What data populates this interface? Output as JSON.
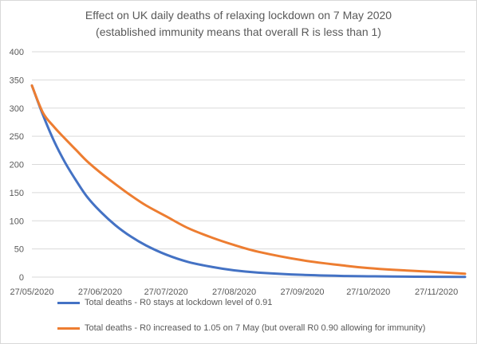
{
  "chart_data": {
    "type": "line",
    "title": "Effect on UK daily deaths of relaxing lockdown on 7 May 2020",
    "subtitle": "(established immunity means that overall R is less than 1)",
    "xlabel": "",
    "ylabel": "",
    "ylim": [
      0,
      400
    ],
    "yticks": [
      "0",
      "50",
      "100",
      "150",
      "200",
      "250",
      "300",
      "350",
      "400"
    ],
    "xticks": [
      "27/05/2020",
      "27/06/2020",
      "27/07/2020",
      "27/08/2020",
      "27/09/2020",
      "27/10/2020",
      "27/11/2020"
    ],
    "x_start": "2020-05-27",
    "x_end": "2020-12-10",
    "grid": "horizontal",
    "legend_position": "bottom",
    "x": [
      "2020-05-27",
      "2020-06-01",
      "2020-06-06",
      "2020-06-11",
      "2020-06-16",
      "2020-06-21",
      "2020-06-27",
      "2020-07-04",
      "2020-07-11",
      "2020-07-18",
      "2020-07-27",
      "2020-08-06",
      "2020-08-17",
      "2020-08-27",
      "2020-09-07",
      "2020-09-27",
      "2020-10-17",
      "2020-10-27",
      "2020-11-07",
      "2020-11-27",
      "2020-12-10"
    ],
    "series": [
      {
        "name": "Total deaths - R0 stays at lockdown level of 0.91",
        "color": "#4472c4",
        "values": [
          340,
          288,
          242,
          204,
          172,
          143,
          117,
          92,
          72,
          56,
          40,
          27,
          18,
          12,
          8,
          4,
          2,
          1.5,
          1,
          0.5,
          0.3
        ]
      },
      {
        "name": "Total deaths - R0 increased to 1.05 on 7 May (but overall R0 0.90 allowing for immunity)",
        "color": "#ed7d31",
        "values": [
          340,
          292,
          267,
          246,
          226,
          206,
          186,
          165,
          145,
          127,
          108,
          87,
          70,
          57,
          45,
          30,
          20,
          16,
          13,
          9,
          6
        ]
      }
    ]
  }
}
